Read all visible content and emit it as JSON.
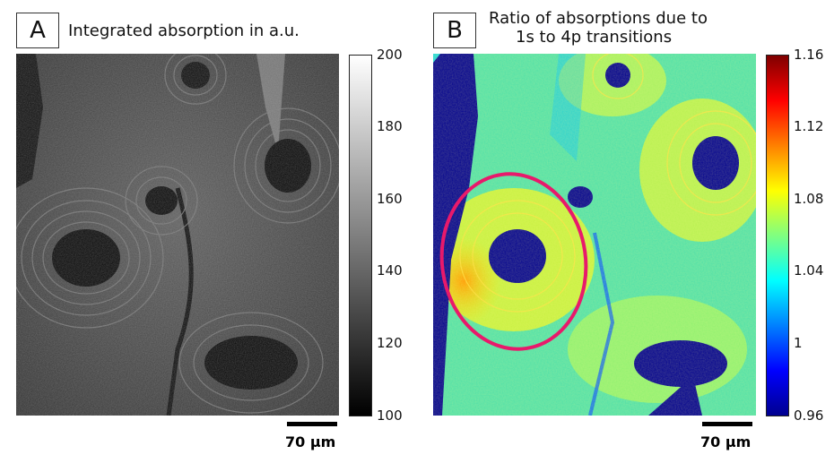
{
  "panel_a": {
    "letter": "A",
    "title": "Integrated absorption in a.u.",
    "colorbar": {
      "ticks": [
        "200",
        "180",
        "160",
        "140",
        "120",
        "100"
      ],
      "gradient": [
        "#ffffff",
        "#000000"
      ]
    },
    "scalebar": "70 µm"
  },
  "panel_b": {
    "letter": "B",
    "title_line1": "Ratio of absorptions due to",
    "title_line2": "1s to 4p transitions",
    "colorbar": {
      "ticks": [
        "1.16",
        "1.12",
        "1.08",
        "1.04",
        "1",
        "0.96"
      ],
      "gradient": [
        "#7f0000",
        "#ff0000",
        "#ff8000",
        "#ffff00",
        "#80ff80",
        "#00ffff",
        "#0080ff",
        "#0000ff",
        "#00008f"
      ]
    },
    "scalebar": "70 µm",
    "highlight_color": "#e8196b"
  }
}
